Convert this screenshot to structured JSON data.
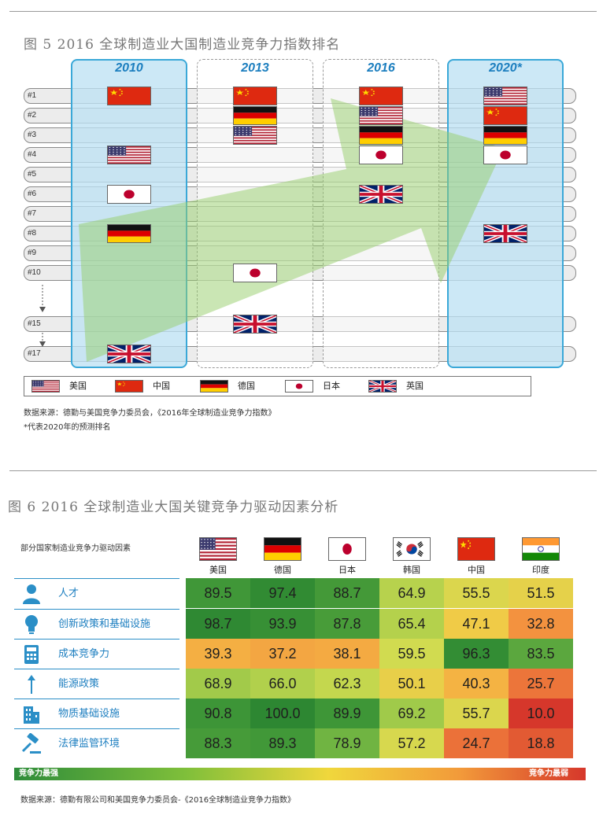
{
  "figure5": {
    "title": "图 5   2016 全球制造业大国制造业竞争力指数排名",
    "years": [
      "2010",
      "2013",
      "2016",
      "2020*"
    ],
    "rank_labels": [
      "#1",
      "#2",
      "#3",
      "#4",
      "#5",
      "#6",
      "#7",
      "#8",
      "#9",
      "#10",
      "#15",
      "#17"
    ],
    "legend": [
      {
        "flag": "usa",
        "label": "美国"
      },
      {
        "flag": "china",
        "label": "中国"
      },
      {
        "flag": "germany",
        "label": "德国"
      },
      {
        "flag": "japan",
        "label": "日本"
      },
      {
        "flag": "uk",
        "label": "英国"
      }
    ],
    "source": "数据来源：德勤与美国竞争力委员会，《2016年全球制造业竞争力指数》",
    "footnote": "*代表2020年的预测排名"
  },
  "figure6": {
    "title": "图 6   2016 全球制造业大国关键竞争力驱动因素分析",
    "header": "部分国家制造业竞争力驱动因素",
    "countries": [
      {
        "flag": "usa",
        "name": "美国"
      },
      {
        "flag": "germany",
        "name": "德国"
      },
      {
        "flag": "japan",
        "name": "日本"
      },
      {
        "flag": "korea",
        "name": "韩国"
      },
      {
        "flag": "china",
        "name": "中国"
      },
      {
        "flag": "india",
        "name": "印度"
      }
    ],
    "rows": [
      {
        "icon": "person-icon",
        "label": "人才"
      },
      {
        "icon": "lightbulb-icon",
        "label": "创新政策和基础设施"
      },
      {
        "icon": "calculator-icon",
        "label": "成本竞争力"
      },
      {
        "icon": "arrow-up-icon",
        "label": "能源政策"
      },
      {
        "icon": "building-icon",
        "label": "物质基础设施"
      },
      {
        "icon": "gavel-icon",
        "label": "法律监管环境"
      }
    ],
    "scale_left": "竞争力最强",
    "scale_right": "竞争力最弱",
    "source": "数据来源：德勤有限公司和美国竞争力委员会-《2016全球制造业竞争力指数》"
  },
  "chart_data": [
    {
      "type": "table",
      "title": "2016 全球制造业大国制造业竞争力指数排名",
      "columns": [
        "2010",
        "2013",
        "2016",
        "2020*"
      ],
      "rankings": {
        "2010": {
          "中国": 1,
          "美国": 4,
          "日本": 6,
          "德国": 8,
          "英国": 17
        },
        "2013": {
          "中国": 1,
          "德国": 2,
          "美国": 3,
          "日本": 10,
          "英国": 15
        },
        "2016": {
          "中国": 1,
          "美国": 2,
          "德国": 3,
          "日本": 4,
          "英国": 6
        },
        "2020*": {
          "美国": 1,
          "中国": 2,
          "德国": 3,
          "日本": 4,
          "英国": 8
        }
      }
    },
    {
      "type": "heatmap",
      "title": "2016 全球制造业大国关键竞争力驱动因素分析",
      "x": [
        "美国",
        "德国",
        "日本",
        "韩国",
        "中国",
        "印度"
      ],
      "y": [
        "人才",
        "创新政策和基础设施",
        "成本竞争力",
        "能源政策",
        "物质基础设施",
        "法律监管环境"
      ],
      "values": [
        [
          89.5,
          97.4,
          88.7,
          64.9,
          55.5,
          51.5
        ],
        [
          98.7,
          93.9,
          87.8,
          65.4,
          47.1,
          32.8
        ],
        [
          39.3,
          37.2,
          38.1,
          59.5,
          96.3,
          83.5
        ],
        [
          68.9,
          66.0,
          62.3,
          50.1,
          40.3,
          25.7
        ],
        [
          90.8,
          100.0,
          89.9,
          69.2,
          55.7,
          10.0
        ],
        [
          88.3,
          89.3,
          78.9,
          57.2,
          24.7,
          18.8
        ]
      ]
    }
  ]
}
